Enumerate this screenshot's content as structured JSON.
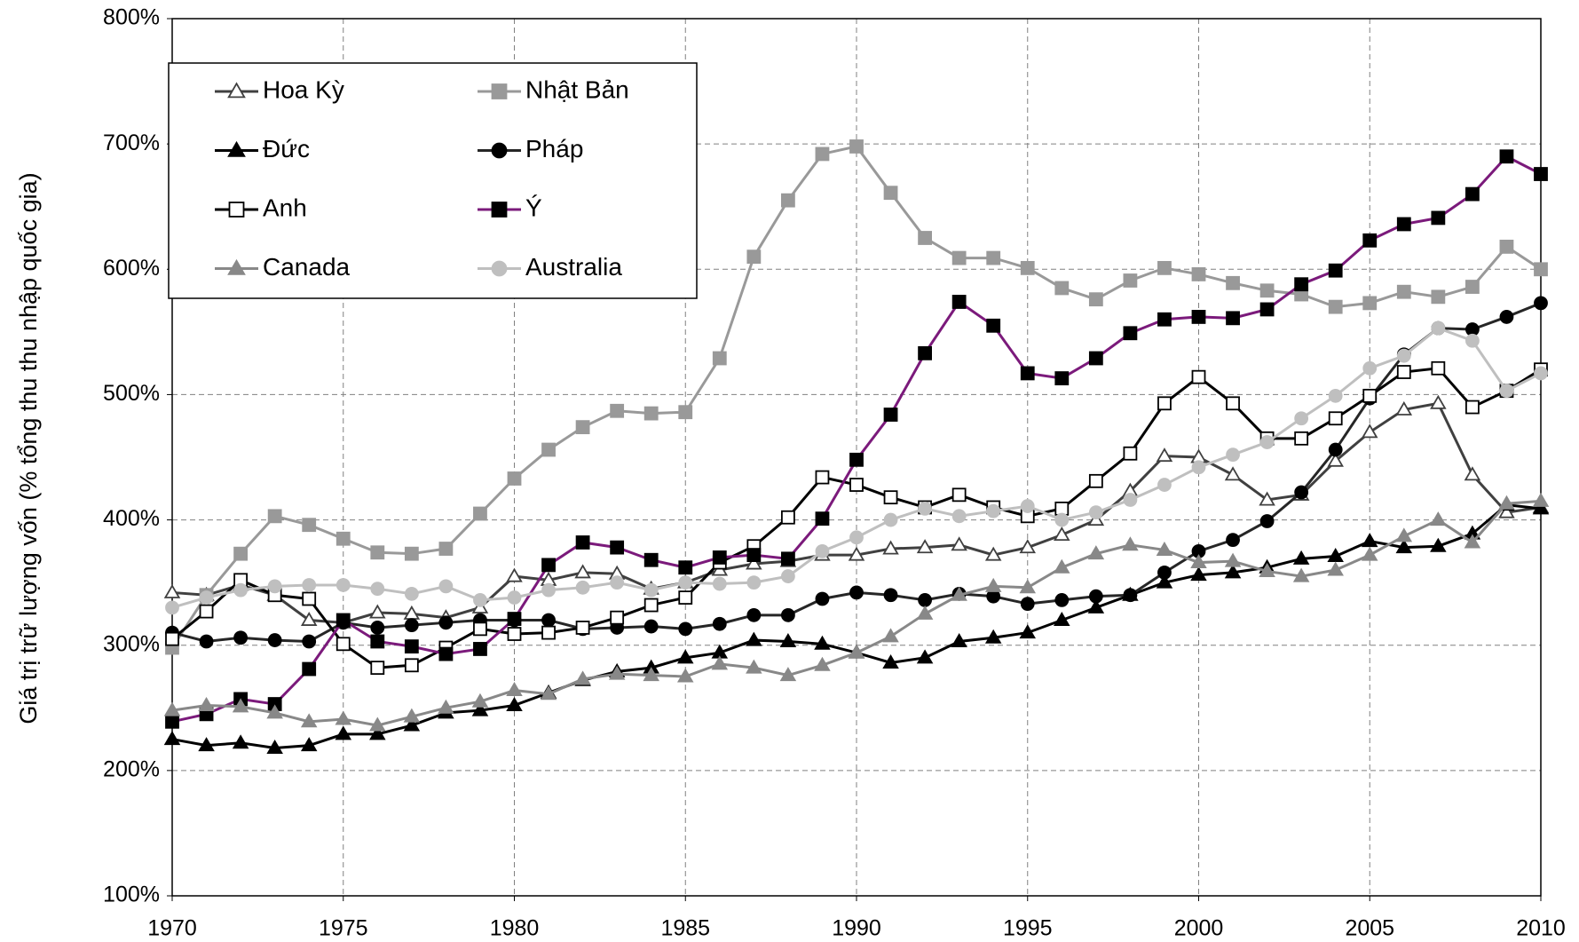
{
  "chart_data": {
    "type": "line",
    "y_label": "Giá trị trữ lượng vốn (% tổng thu thu nhập quốc gia)",
    "x": [
      1970,
      1971,
      1972,
      1973,
      1974,
      1975,
      1976,
      1977,
      1978,
      1979,
      1980,
      1981,
      1982,
      1983,
      1984,
      1985,
      1986,
      1987,
      1988,
      1989,
      1990,
      1991,
      1992,
      1993,
      1994,
      1995,
      1996,
      1997,
      1998,
      1999,
      2000,
      2001,
      2002,
      2003,
      2004,
      2005,
      2006,
      2007,
      2008,
      2009,
      2010
    ],
    "xlim": [
      1970,
      2010
    ],
    "xticks": [
      1970,
      1975,
      1980,
      1985,
      1990,
      1995,
      2000,
      2005,
      2010
    ],
    "ylim": [
      100,
      800
    ],
    "yticks": [
      {
        "value": 100,
        "label": "100%"
      },
      {
        "value": 200,
        "label": "200%"
      },
      {
        "value": 300,
        "label": "300%"
      },
      {
        "value": 400,
        "label": "400%"
      },
      {
        "value": 500,
        "label": "500%"
      },
      {
        "value": 600,
        "label": "600%"
      },
      {
        "value": 700,
        "label": "700%"
      },
      {
        "value": 800,
        "label": "800%"
      }
    ],
    "grid": true,
    "legend": "upper left",
    "series": [
      {
        "name": "Hoa Kỳ",
        "color": "#404040",
        "marker": "triangle",
        "marker_fill": "#ffffff",
        "marker_stroke": "#404040",
        "values": [
          342,
          340,
          348,
          340,
          320,
          318,
          326,
          325,
          322,
          330,
          355,
          352,
          358,
          357,
          345,
          350,
          360,
          365,
          367,
          372,
          372,
          377,
          378,
          380,
          372,
          378,
          388,
          400,
          423,
          451,
          450,
          436,
          416,
          420,
          447,
          470,
          488,
          493,
          436,
          406,
          410
        ]
      },
      {
        "name": "Nhật Bản",
        "color": "#999999",
        "marker": "square",
        "marker_fill": "#999999",
        "marker_stroke": "#999999",
        "values": [
          298,
          340,
          373,
          403,
          396,
          385,
          374,
          373,
          377,
          405,
          433,
          456,
          474,
          487,
          485,
          486,
          529,
          610,
          655,
          692,
          698,
          661,
          625,
          609,
          609,
          601,
          585,
          576,
          591,
          601,
          596,
          589,
          583,
          580,
          570,
          573,
          582,
          578,
          586,
          618,
          600
        ]
      },
      {
        "name": "Đức",
        "color": "#000000",
        "marker": "triangle",
        "marker_fill": "#000000",
        "marker_stroke": "#000000",
        "values": [
          225,
          220,
          222,
          218,
          220,
          229,
          229,
          236,
          246,
          248,
          252,
          262,
          272,
          279,
          282,
          290,
          294,
          304,
          303,
          301,
          294,
          286,
          290,
          303,
          306,
          310,
          320,
          330,
          340,
          350,
          356,
          358,
          362,
          369,
          371,
          383,
          378,
          379,
          389,
          412,
          409
        ]
      },
      {
        "name": "Pháp",
        "color": "#262626",
        "marker": "circle",
        "marker_fill": "#000000",
        "marker_stroke": "#000000",
        "values": [
          310,
          303,
          306,
          304,
          303,
          318,
          314,
          316,
          318,
          320,
          320,
          320,
          313,
          314,
          315,
          313,
          317,
          324,
          324,
          337,
          342,
          340,
          336,
          341,
          339,
          333,
          336,
          339,
          340,
          358,
          375,
          384,
          399,
          422,
          456,
          497,
          532,
          553,
          552,
          562,
          573
        ]
      },
      {
        "name": "Anh",
        "color": "#000000",
        "marker": "square",
        "marker_fill": "#ffffff",
        "marker_stroke": "#000000",
        "values": [
          305,
          327,
          352,
          340,
          337,
          301,
          282,
          284,
          298,
          313,
          309,
          310,
          314,
          322,
          332,
          338,
          366,
          379,
          402,
          434,
          428,
          418,
          410,
          420,
          410,
          403,
          409,
          431,
          453,
          493,
          514,
          493,
          465,
          465,
          481,
          499,
          518,
          521,
          490,
          503,
          520
        ]
      },
      {
        "name": "Ý",
        "color": "#7b1a7b",
        "marker": "square",
        "marker_fill": "#000000",
        "marker_stroke": "#000000",
        "values": [
          239,
          245,
          257,
          253,
          281,
          320,
          303,
          299,
          293,
          297,
          321,
          364,
          382,
          378,
          368,
          362,
          370,
          372,
          369,
          401,
          448,
          484,
          533,
          574,
          555,
          517,
          513,
          529,
          549,
          560,
          562,
          561,
          568,
          588,
          599,
          623,
          636,
          641,
          660,
          690,
          676
        ]
      },
      {
        "name": "Canada",
        "color": "#888888",
        "marker": "triangle",
        "marker_fill": "#888888",
        "marker_stroke": "#888888",
        "values": [
          248,
          252,
          251,
          246,
          239,
          241,
          236,
          243,
          250,
          255,
          264,
          261,
          273,
          277,
          276,
          275,
          285,
          282,
          276,
          284,
          294,
          307,
          325,
          340,
          347,
          346,
          362,
          373,
          380,
          376,
          366,
          367,
          359,
          355,
          360,
          372,
          387,
          400,
          382,
          413,
          415
        ]
      },
      {
        "name": "Australia",
        "color": "#bfbfbf",
        "marker": "circle",
        "marker_fill": "#bfbfbf",
        "marker_stroke": "#bfbfbf",
        "values": [
          330,
          338,
          344,
          347,
          348,
          348,
          345,
          341,
          347,
          336,
          338,
          344,
          346,
          350,
          344,
          350,
          349,
          350,
          355,
          375,
          386,
          400,
          409,
          403,
          407,
          411,
          400,
          406,
          416,
          428,
          442,
          452,
          462,
          481,
          499,
          521,
          531,
          553,
          543,
          503,
          517
        ]
      }
    ]
  }
}
